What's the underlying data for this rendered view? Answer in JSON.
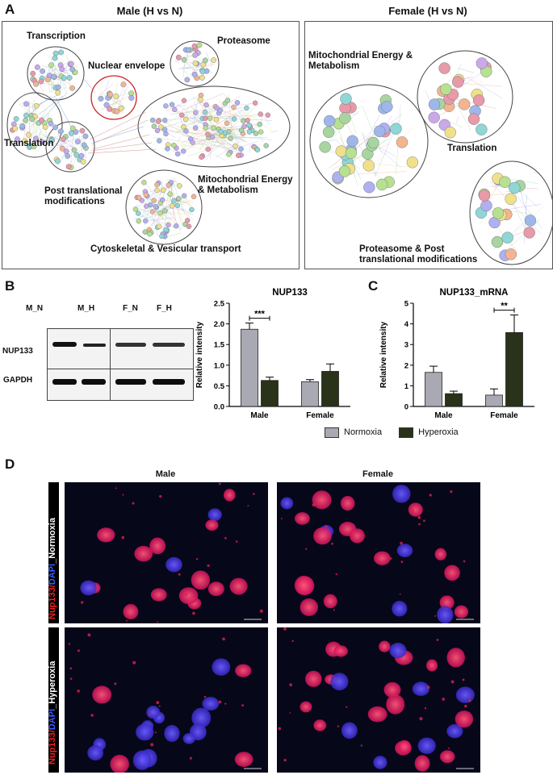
{
  "panel_labels": {
    "a": "A",
    "b": "B",
    "c": "C",
    "d": "D"
  },
  "panel_a": {
    "male_title": "Male (H vs N)",
    "female_title": "Female (H vs N)",
    "male_clusters": {
      "transcription": "Transcription",
      "nuclear_envelope": "Nuclear envelope",
      "proteasome": "Proteasome",
      "translation": "Translation",
      "ptm": [
        "Post translational",
        "modifications"
      ],
      "mito": [
        "Mitochondrial Energy",
        "& Metabolism"
      ],
      "cyto": "Cytoskeletal & Vesicular transport"
    },
    "female_clusters": {
      "mito": [
        "Mitochondrial Energy &",
        "Metabolism"
      ],
      "translation": "Translation",
      "proteasome": [
        "Proteasome & Post",
        "translational modifications"
      ]
    }
  },
  "panel_b": {
    "lane_labels": [
      "M_N",
      "M_H",
      "F_N",
      "F_H"
    ],
    "row_labels": [
      "NUP133",
      "GAPDH"
    ]
  },
  "colors": {
    "normoxia": "#a9a9b4",
    "hyperoxia": "#2a321a",
    "highlight_circle": "#cc2222"
  },
  "legend": {
    "normoxia": "Normoxia",
    "hyperoxia": "Hyperoxia"
  },
  "chart_data": [
    {
      "type": "bar",
      "title": "NUP133",
      "ylabel": "Relative intensity",
      "xlabel": "",
      "categories": [
        "Male",
        "Female"
      ],
      "series": [
        {
          "name": "Normoxia",
          "values": [
            1.87,
            0.6
          ],
          "errors": [
            0.15,
            0.05
          ]
        },
        {
          "name": "Hyperoxia",
          "values": [
            0.63,
            0.85
          ],
          "errors": [
            0.08,
            0.18
          ]
        }
      ],
      "ylim": [
        0,
        2.5
      ],
      "yticks": [
        "0.0",
        "0.5",
        "1.0",
        "1.5",
        "2.0",
        "2.5"
      ],
      "significance": [
        {
          "category": "Male",
          "label": "***"
        }
      ]
    },
    {
      "type": "bar",
      "title": "NUP133_mRNA",
      "ylabel": "Relative intensity",
      "xlabel": "",
      "categories": [
        "Male",
        "Female"
      ],
      "series": [
        {
          "name": "Normoxia",
          "values": [
            1.65,
            0.55
          ],
          "errors": [
            0.3,
            0.3
          ]
        },
        {
          "name": "Hyperoxia",
          "values": [
            0.62,
            3.58
          ],
          "errors": [
            0.12,
            0.85
          ]
        }
      ],
      "ylim": [
        0,
        5
      ],
      "yticks": [
        "0",
        "1",
        "2",
        "3",
        "4",
        "5"
      ],
      "significance": [
        {
          "category": "Female",
          "label": "**"
        }
      ]
    }
  ],
  "panel_d": {
    "col_titles": [
      "Male",
      "Female"
    ],
    "rows": [
      {
        "stain_red": "Nup133/",
        "stain_blue": "DAPI",
        "stain_white": "_Normoxia"
      },
      {
        "stain_red": "Nup133/",
        "stain_blue": "DAPI",
        "stain_white": "_Hyperoxia"
      }
    ]
  }
}
